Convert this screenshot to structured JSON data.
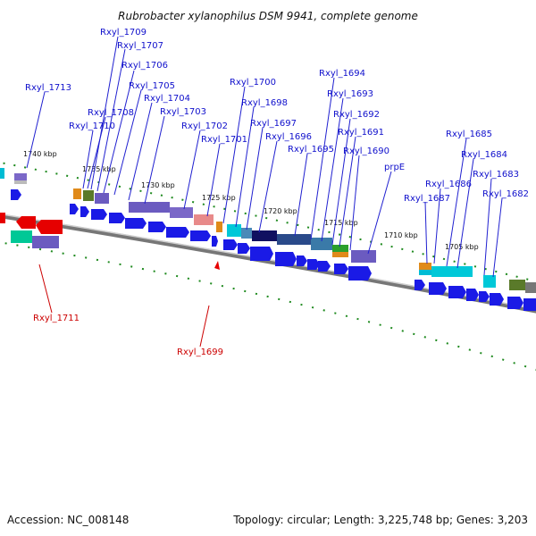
{
  "title": "Rubrobacter xylanophilus DSM 9941, complete genome",
  "footer": {
    "accession": "Accession: NC_008148",
    "summary": "Topology: circular; Length: 3,225,748 bp; Genes: 3,203"
  },
  "colors": {
    "forward_arrow": "#1a1ae6",
    "reverse_arrow": "#e60000",
    "backbone": "#888888",
    "tick_green": "#1f8a1f",
    "label_blue": "#1010cc",
    "label_red": "#cc0000"
  },
  "kbp_marks": [
    "1740 kbp",
    "1735 kbp",
    "1730 kbp",
    "1725 kbp",
    "1720 kbp",
    "1715 kbp",
    "1710 kbp",
    "1705 kbp"
  ],
  "gene_labels_forward": [
    "Rxyl_1713",
    "Rxyl_1709",
    "Rxyl_1707",
    "Rxyl_1706",
    "Rxyl_1705",
    "Rxyl_1704",
    "Rxyl_1708",
    "Rxyl_1710",
    "Rxyl_1703",
    "Rxyl_1702",
    "Rxyl_1701",
    "Rxyl_1700",
    "Rxyl_1698",
    "Rxyl_1697",
    "Rxyl_1696",
    "Rxyl_1695",
    "Rxyl_1694",
    "Rxyl_1693",
    "Rxyl_1692",
    "Rxyl_1691",
    "Rxyl_1690",
    "prpE",
    "Rxyl_1685",
    "Rxyl_1684",
    "Rxyl_1686",
    "Rxyl_1687",
    "Rxyl_1683",
    "Rxyl_1682"
  ],
  "gene_labels_reverse": [
    "Rxyl_1711",
    "Rxyl_1699"
  ]
}
